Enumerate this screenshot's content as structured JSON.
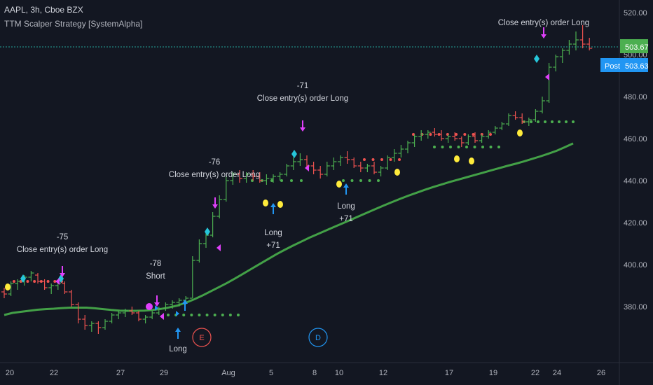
{
  "header": {
    "symbol_line": "AAPL, 3h, Cboe BZX",
    "indicator": "TTM Scalper Strategy [SystemAlpha]"
  },
  "colors": {
    "background": "#131722",
    "up": "#4caf50",
    "down": "#ef5350",
    "neutral": "#ffeb3b",
    "ma": "#43a047",
    "signal_marker": "#e040fb",
    "entry_arrow": "#2196f3",
    "diamond": "#26c6da",
    "price_badge_green": "#4caf50",
    "post_badge": "#2196f3"
  },
  "chart_data": {
    "type": "ohlc",
    "title": "",
    "x_ticks": [
      "20",
      "22",
      "27",
      "29",
      "Aug",
      "5",
      "8",
      "10",
      "12",
      "17",
      "19",
      "22",
      "24",
      "26"
    ],
    "y_ticks": [
      "520.00",
      "500.00",
      "480.00",
      "460.00",
      "440.00",
      "420.00",
      "400.00",
      "380.00"
    ],
    "ylim": [
      363,
      524
    ],
    "last_price": "503.67",
    "post_price": "503.63",
    "post_label": "Post",
    "bars": [
      [
        387,
        389,
        384,
        386
      ],
      [
        386,
        392,
        385,
        391
      ],
      [
        391,
        393,
        388,
        392
      ],
      [
        392,
        395,
        390,
        394
      ],
      [
        394,
        397,
        392,
        396
      ],
      [
        395,
        396,
        391,
        392
      ],
      [
        392,
        393,
        388,
        389
      ],
      [
        389,
        391,
        386,
        390
      ],
      [
        390,
        393,
        388,
        391
      ],
      [
        391,
        392,
        386,
        387
      ],
      [
        387,
        388,
        380,
        381
      ],
      [
        381,
        382,
        372,
        374
      ],
      [
        374,
        376,
        369,
        371
      ],
      [
        371,
        373,
        368,
        372
      ],
      [
        372,
        373,
        367,
        370
      ],
      [
        370,
        374,
        369,
        373
      ],
      [
        373,
        377,
        372,
        376
      ],
      [
        376,
        378,
        374,
        377
      ],
      [
        377,
        379,
        375,
        378
      ],
      [
        378,
        380,
        376,
        377
      ],
      [
        377,
        378,
        373,
        374
      ],
      [
        374,
        376,
        372,
        375
      ],
      [
        375,
        378,
        374,
        377
      ],
      [
        377,
        380,
        376,
        379
      ],
      [
        379,
        382,
        378,
        381
      ],
      [
        381,
        383,
        379,
        382
      ],
      [
        382,
        384,
        380,
        383
      ],
      [
        383,
        385,
        381,
        384
      ],
      [
        384,
        404,
        384,
        402
      ],
      [
        402,
        412,
        401,
        410
      ],
      [
        410,
        416,
        408,
        414
      ],
      [
        414,
        425,
        413,
        423
      ],
      [
        423,
        433,
        422,
        431
      ],
      [
        431,
        442,
        430,
        440
      ],
      [
        440,
        444,
        438,
        443
      ],
      [
        443,
        445,
        439,
        441
      ],
      [
        441,
        444,
        439,
        443
      ],
      [
        443,
        445,
        440,
        442
      ],
      [
        442,
        444,
        439,
        440
      ],
      [
        440,
        443,
        438,
        441
      ],
      [
        441,
        443,
        439,
        442
      ],
      [
        442,
        444,
        440,
        443
      ],
      [
        443,
        448,
        442,
        447
      ],
      [
        447,
        451,
        445,
        449
      ],
      [
        449,
        453,
        447,
        450
      ],
      [
        450,
        452,
        446,
        447
      ],
      [
        447,
        449,
        443,
        445
      ],
      [
        445,
        447,
        441,
        443
      ],
      [
        443,
        449,
        442,
        447
      ],
      [
        447,
        451,
        445,
        449
      ],
      [
        449,
        452,
        447,
        451
      ],
      [
        451,
        454,
        448,
        450
      ],
      [
        450,
        451,
        446,
        447
      ],
      [
        447,
        449,
        444,
        446
      ],
      [
        446,
        448,
        444,
        447
      ],
      [
        447,
        449,
        443,
        444
      ],
      [
        444,
        447,
        442,
        446
      ],
      [
        446,
        452,
        445,
        451
      ],
      [
        451,
        455,
        449,
        453
      ],
      [
        453,
        457,
        451,
        455
      ],
      [
        455,
        459,
        453,
        458
      ],
      [
        458,
        462,
        456,
        461
      ],
      [
        461,
        464,
        459,
        462
      ],
      [
        462,
        464,
        460,
        463
      ],
      [
        463,
        465,
        461,
        462
      ],
      [
        462,
        464,
        459,
        460
      ],
      [
        460,
        462,
        458,
        461
      ],
      [
        461,
        463,
        459,
        460
      ],
      [
        460,
        461,
        456,
        458
      ],
      [
        458,
        462,
        457,
        461
      ],
      [
        461,
        463,
        458,
        459
      ],
      [
        459,
        462,
        458,
        461
      ],
      [
        461,
        464,
        460,
        463
      ],
      [
        463,
        466,
        462,
        465
      ],
      [
        465,
        468,
        464,
        467
      ],
      [
        467,
        472,
        466,
        471
      ],
      [
        471,
        473,
        469,
        470
      ],
      [
        470,
        472,
        467,
        468
      ],
      [
        468,
        470,
        466,
        469
      ],
      [
        469,
        474,
        468,
        473
      ],
      [
        473,
        480,
        472,
        478
      ],
      [
        478,
        496,
        477,
        494
      ],
      [
        494,
        500,
        492,
        499
      ],
      [
        499,
        503,
        496,
        502
      ],
      [
        502,
        507,
        500,
        505
      ],
      [
        505,
        511,
        502,
        507
      ],
      [
        507,
        514,
        503,
        505
      ],
      [
        505,
        508,
        502,
        503
      ]
    ],
    "ma_series": [
      376,
      377,
      377.5,
      378,
      378.5,
      378.8,
      379,
      379.3,
      379.5,
      379.5,
      379.5,
      379.2,
      378.8,
      378.4,
      378.1,
      378,
      378,
      378.1,
      378.4,
      378.9,
      379.6,
      380.5,
      381.8,
      383.4,
      385.2,
      387.2,
      389.2,
      391.2,
      393.4,
      395.7,
      398,
      400.3,
      402.6,
      404.9,
      407,
      409,
      410.9,
      412.8,
      414.5,
      416.2,
      417.9,
      419.6,
      421.3,
      423,
      424.7,
      426.4,
      428.1,
      429.7,
      431.3,
      432.8,
      434.2,
      435.6,
      436.9,
      438.1,
      439.3,
      440.4,
      441.5,
      442.6,
      443.7,
      444.8,
      445.9,
      447,
      448,
      449.1,
      450.3,
      451.5,
      452.8,
      454.2,
      455.9,
      457.7
    ],
    "annotations": [
      {
        "val": "-75",
        "text": "Close entry(s) order Long"
      },
      {
        "val": "-78",
        "text": "Short"
      },
      {
        "val": "-76",
        "text": "Close entry(s) order Long"
      },
      {
        "val": "-71",
        "text": "Close entry(s) order Long"
      },
      {
        "val": "",
        "text": "Close entry(s) order Long"
      },
      {
        "val": "Long",
        "text": "+71"
      },
      {
        "val": "Long",
        "text": "+71"
      },
      {
        "val": "Long",
        "text": ""
      }
    ],
    "event_markers": [
      "E",
      "D"
    ]
  }
}
